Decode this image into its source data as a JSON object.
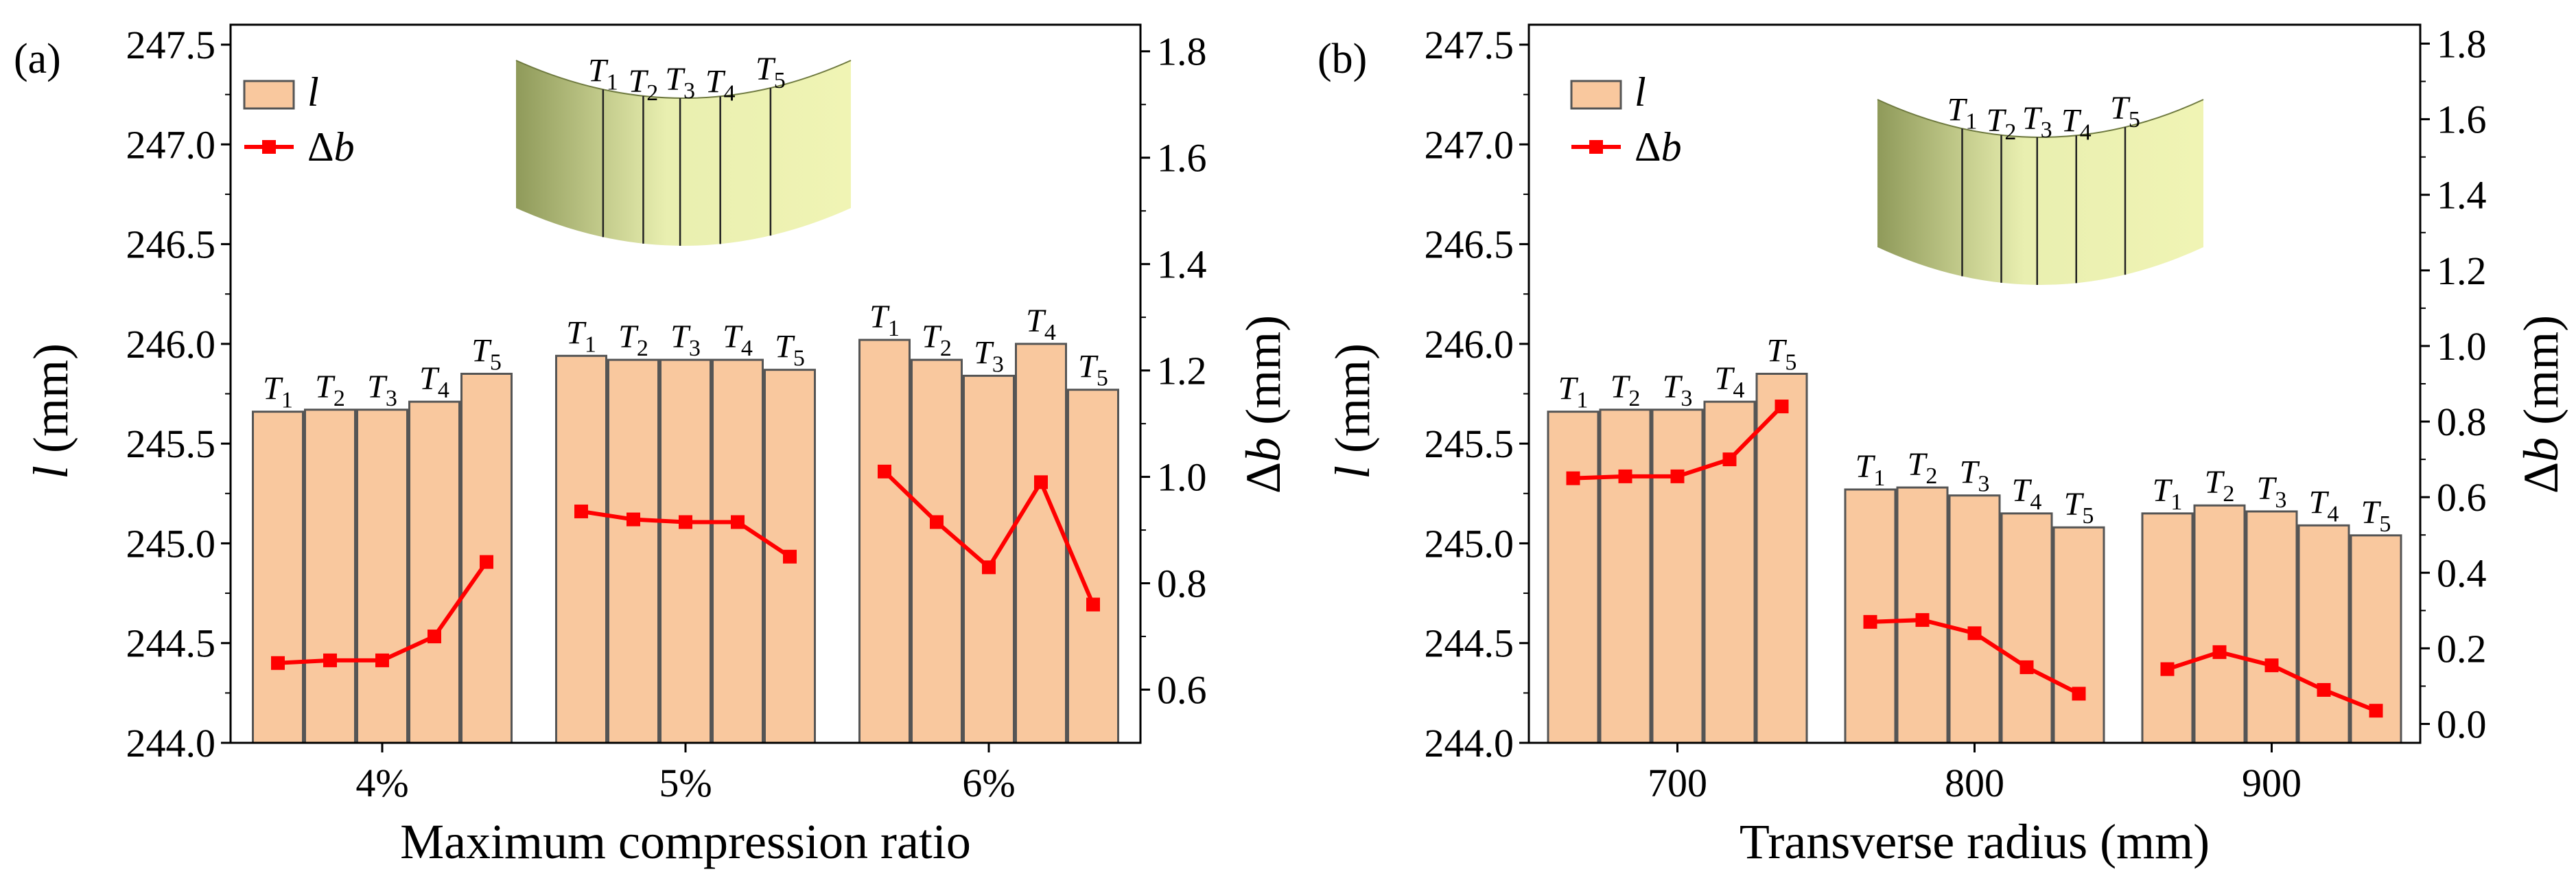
{
  "colors": {
    "bar_fill": "#f9c89e",
    "bar_stroke": "#555555",
    "line": "#ff0000",
    "axis": "#000000",
    "surface_light": "#f0f4b4",
    "surface_dark": "#8f9a5a"
  },
  "legend": {
    "bar": "l",
    "line": "Δb"
  },
  "chart_data": [
    {
      "panel_label": "(a)",
      "type": "bar+line",
      "xlabel": "Maximum compression ratio",
      "ylabel_left": {
        "var": "l",
        "unit": "(mm)"
      },
      "ylabel_right": {
        "var": "Δb",
        "unit": "(mm)"
      },
      "ylim_left": [
        244.0,
        247.6
      ],
      "yticks_left": [
        "244.0",
        "244.5",
        "245.0",
        "245.5",
        "246.0",
        "246.5",
        "247.0",
        "247.5"
      ],
      "ylim_right": [
        0.5,
        1.85
      ],
      "yticks_right": [
        "0.6",
        "0.8",
        "1.0",
        "1.2",
        "1.4",
        "1.6",
        "1.8"
      ],
      "categories": [
        "4%",
        "5%",
        "6%"
      ],
      "point_labels": [
        "T1",
        "T2",
        "T3",
        "T4",
        "T5"
      ],
      "inset_labels": [
        "T1",
        "T2",
        "T3",
        "T4",
        "T5"
      ],
      "series": [
        {
          "name": "l",
          "kind": "bar",
          "axis": "left",
          "values": [
            [
              245.66,
              245.67,
              245.67,
              245.71,
              245.85
            ],
            [
              245.94,
              245.92,
              245.92,
              245.92,
              245.87
            ],
            [
              246.02,
              245.92,
              245.84,
              246.0,
              245.77
            ]
          ]
        },
        {
          "name": "Δb",
          "kind": "line",
          "axis": "right",
          "values": [
            [
              0.65,
              0.655,
              0.655,
              0.7,
              0.84
            ],
            [
              0.935,
              0.92,
              0.915,
              0.915,
              0.85
            ],
            [
              1.01,
              0.915,
              0.83,
              0.99,
              0.76
            ]
          ]
        }
      ]
    },
    {
      "panel_label": "(b)",
      "type": "bar+line",
      "xlabel": "Transverse radius (mm)",
      "ylabel_left": {
        "var": "l",
        "unit": "(mm)"
      },
      "ylabel_right": {
        "var": "Δb",
        "unit": "(mm)"
      },
      "ylim_left": [
        244.0,
        247.6
      ],
      "yticks_left": [
        "244.0",
        "244.5",
        "245.0",
        "245.5",
        "246.0",
        "246.5",
        "247.0",
        "247.5"
      ],
      "ylim_right": [
        -0.05,
        1.85
      ],
      "yticks_right": [
        "0.0",
        "0.2",
        "0.4",
        "0.6",
        "0.8",
        "1.0",
        "1.2",
        "1.4",
        "1.6",
        "1.8"
      ],
      "categories": [
        "700",
        "800",
        "900"
      ],
      "point_labels": [
        "T1",
        "T2",
        "T3",
        "T4",
        "T5"
      ],
      "inset_labels": [
        "T1",
        "T2",
        "T3",
        "T4",
        "T5"
      ],
      "series": [
        {
          "name": "l",
          "kind": "bar",
          "axis": "left",
          "values": [
            [
              245.66,
              245.67,
              245.67,
              245.71,
              245.85
            ],
            [
              245.27,
              245.28,
              245.24,
              245.15,
              245.08
            ],
            [
              245.15,
              245.19,
              245.16,
              245.09,
              245.04
            ]
          ]
        },
        {
          "name": "Δb",
          "kind": "line",
          "axis": "right",
          "values": [
            [
              0.65,
              0.655,
              0.655,
              0.7,
              0.84
            ],
            [
              0.27,
              0.275,
              0.24,
              0.15,
              0.08
            ],
            [
              0.145,
              0.19,
              0.155,
              0.09,
              0.035
            ]
          ]
        }
      ]
    }
  ]
}
